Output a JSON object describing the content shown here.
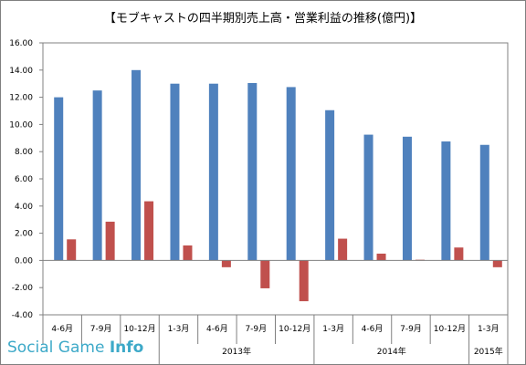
{
  "chart_data": {
    "type": "bar",
    "title": "【モブキャストの四半期別売上高・営業利益の推移(億円)】",
    "categories": [
      "4-6月",
      "7-9月",
      "10-12月",
      "1-3月",
      "4-6月",
      "7-9月",
      "10-12月",
      "1-3月",
      "4-6月",
      "7-9月",
      "10-12月",
      "1-3月"
    ],
    "year_groups": [
      {
        "label": "",
        "start": 0,
        "end": 2
      },
      {
        "label": "2013年",
        "start": 3,
        "end": 6
      },
      {
        "label": "2014年",
        "start": 7,
        "end": 10
      },
      {
        "label": "2015年",
        "start": 11,
        "end": 11
      }
    ],
    "series": [
      {
        "values": [
          12.0,
          12.5,
          14.0,
          13.0,
          13.0,
          13.05,
          12.75,
          11.05,
          9.25,
          9.1,
          8.75,
          8.5
        ],
        "color": "#4f81bd"
      },
      {
        "values": [
          1.55,
          2.85,
          4.35,
          1.1,
          -0.5,
          -2.05,
          -3.0,
          1.6,
          0.5,
          0.05,
          0.95,
          -0.5
        ],
        "color": "#c0504d"
      }
    ],
    "ylim": [
      -4.0,
      16.0
    ],
    "y_ticks": [
      "16.00",
      "14.00",
      "12.00",
      "10.00",
      "8.00",
      "6.00",
      "4.00",
      "2.00",
      "0.00",
      "-2.00",
      "-4.00"
    ],
    "grid": false
  },
  "watermark": {
    "text_main": "Social Game ",
    "text_bold": "Info"
  }
}
